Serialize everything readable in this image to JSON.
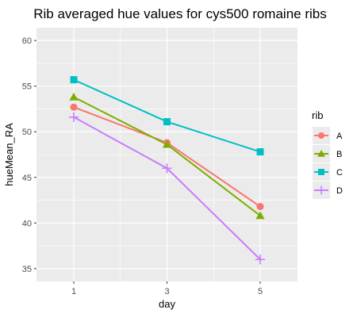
{
  "chart_data": {
    "type": "line",
    "title": "Rib averaged hue values for cys500 romaine ribs",
    "xlabel": "day",
    "ylabel": "hueMean_RA",
    "x": [
      1,
      3,
      5
    ],
    "xticks": [
      "1",
      "3",
      "5"
    ],
    "xlim": [
      0.2,
      5.8
    ],
    "yticks": [
      35,
      40,
      45,
      50,
      55,
      60
    ],
    "ylim": [
      33.6,
      61.4
    ],
    "grid": true,
    "legend": {
      "title": "rib",
      "position": "right"
    },
    "series": [
      {
        "name": "A",
        "color": "#F8766D",
        "marker": "circle",
        "values": [
          52.7,
          48.8,
          41.8
        ]
      },
      {
        "name": "B",
        "color": "#7CAE00",
        "marker": "triangle",
        "values": [
          53.8,
          48.6,
          40.8
        ]
      },
      {
        "name": "C",
        "color": "#00BFC4",
        "marker": "square",
        "values": [
          55.7,
          51.1,
          47.8
        ]
      },
      {
        "name": "D",
        "color": "#C77CFF",
        "marker": "plus",
        "values": [
          51.6,
          46.0,
          36.0
        ]
      }
    ]
  }
}
